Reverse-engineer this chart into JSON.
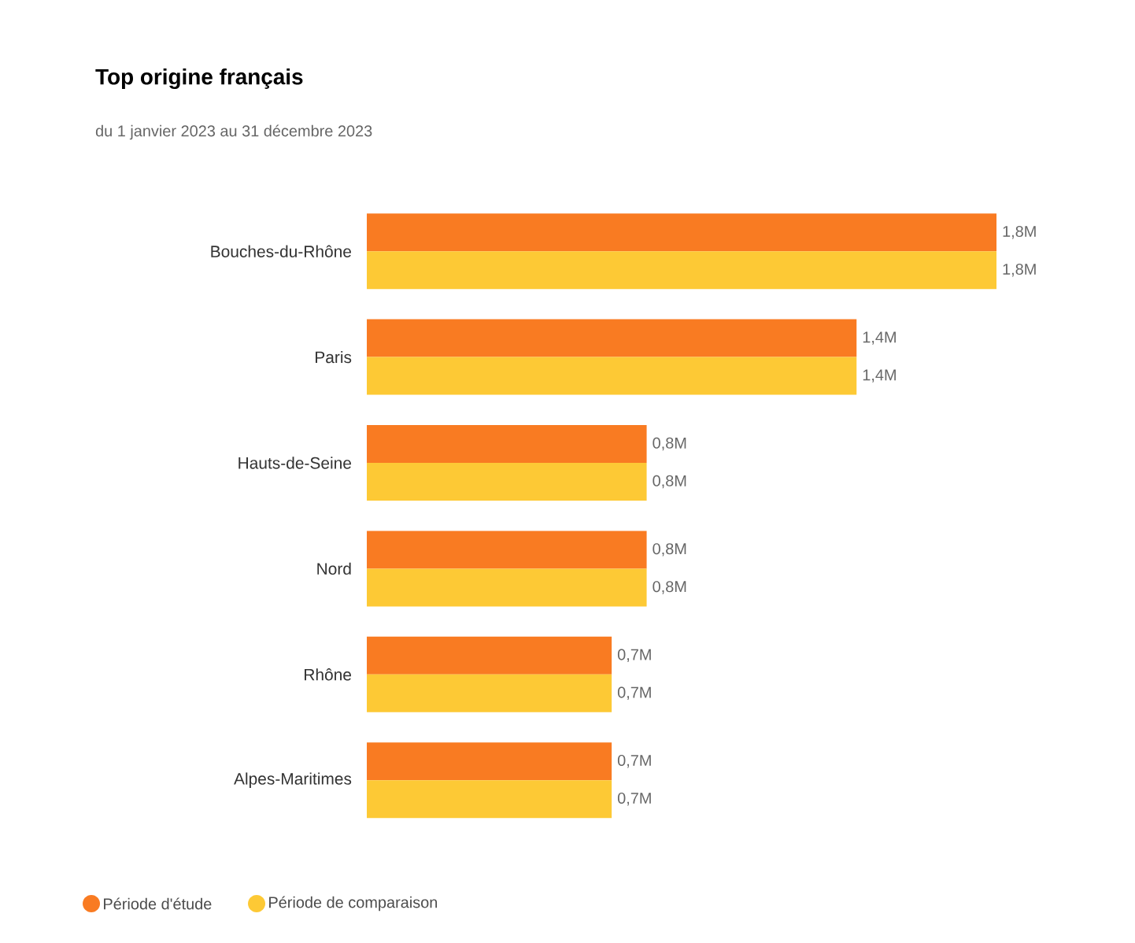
{
  "chart_data": {
    "type": "bar",
    "orientation": "horizontal",
    "title": "Top origine français",
    "subtitle": "du 1 janvier 2023 au 31 décembre 2023",
    "categories": [
      "Bouches-du-Rhône",
      "Paris",
      "Hauts-de-Seine",
      "Nord",
      "Rhône",
      "Alpes-Maritimes"
    ],
    "series": [
      {
        "name": "Période d'étude",
        "color": "#f97b22",
        "values": [
          1.8,
          1.4,
          0.8,
          0.8,
          0.7,
          0.7
        ],
        "value_labels": [
          "1,8M",
          "1,4M",
          "0,8M",
          "0,8M",
          "0,7M",
          "0,7M"
        ]
      },
      {
        "name": "Période de comparaison",
        "color": "#fdc935",
        "values": [
          1.8,
          1.4,
          0.8,
          0.8,
          0.7,
          0.7
        ],
        "value_labels": [
          "1,8M",
          "1,4M",
          "0,8M",
          "0,8M",
          "0,7M",
          "0,7M"
        ]
      }
    ],
    "legend": "bottom left"
  }
}
